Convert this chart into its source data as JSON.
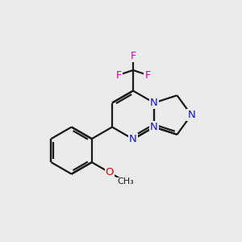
{
  "bg_color": "#ebebeb",
  "bond_color": "#1a1a1a",
  "N_color": "#1515cc",
  "O_color": "#cc0000",
  "F_color": "#cc00aa",
  "bond_width": 1.6,
  "fig_size": [
    3.0,
    3.0
  ],
  "dpi": 100,
  "xlim": [
    0,
    10
  ],
  "ylim": [
    0,
    10
  ]
}
